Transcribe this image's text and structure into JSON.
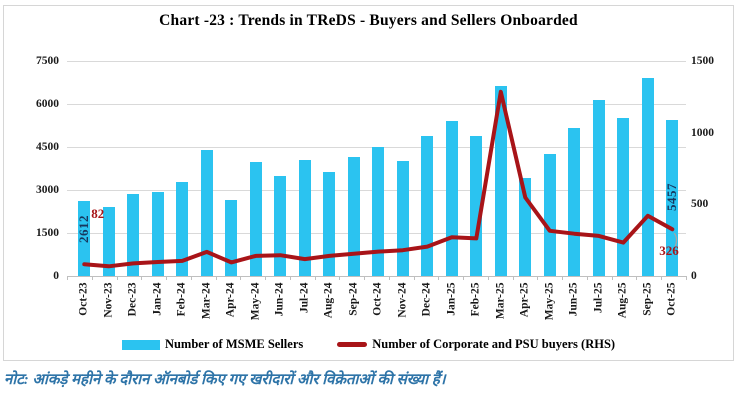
{
  "title": "Chart -23 : Trends in TReDS - Buyers and Sellers Onboarded",
  "note": "नोट: आंकड़े महीने के दौरान ऑनबोर्ड किए गए खरीदारों और विक्रेताओं की संख्या हैं।",
  "colors": {
    "bar": "#2bc3f0",
    "line": "#a81418",
    "bar_label": "#17375e",
    "line_label": "#a81418",
    "grid": "#d9d9d9",
    "note": "#2e74a8"
  },
  "legend": [
    {
      "label": "Number of MSME Sellers",
      "type": "bar",
      "color": "#2bc3f0"
    },
    {
      "label": "Number of Corporate and PSU buyers (RHS)",
      "type": "line",
      "color": "#a81418"
    }
  ],
  "chart_data": {
    "type": "bar",
    "subtype": "bar+line combo, line on secondary (right) axis",
    "title": "Chart -23 : Trends in TReDS - Buyers and Sellers Onboarded",
    "categories": [
      "Oct-23",
      "Nov-23",
      "Dec-23",
      "Jan-24",
      "Feb-24",
      "Mar-24",
      "Apr-24",
      "May-24",
      "Jun-24",
      "Jul-24",
      "Aug-24",
      "Sep-24",
      "Oct-24",
      "Nov-24",
      "Dec-24",
      "Jan-25",
      "Feb-25",
      "Mar-25",
      "Apr-25",
      "May-25",
      "Jun-25",
      "Jul-25",
      "Aug-25",
      "Sep-25",
      "Oct-25"
    ],
    "series": [
      {
        "name": "Number of MSME Sellers",
        "type": "bar",
        "axis": "left",
        "values": [
          2612,
          2400,
          2870,
          2930,
          3280,
          4410,
          2660,
          3990,
          3475,
          4050,
          3615,
          4140,
          4490,
          4000,
          4870,
          5420,
          4900,
          6640,
          3430,
          4260,
          5170,
          6150,
          5520,
          6900,
          5457
        ]
      },
      {
        "name": "Number of Corporate and PSU buyers (RHS)",
        "type": "line",
        "axis": "right",
        "values": [
          82,
          68,
          88,
          98,
          105,
          168,
          95,
          140,
          145,
          118,
          140,
          155,
          170,
          180,
          205,
          270,
          262,
          1285,
          548,
          315,
          295,
          280,
          233,
          420,
          326
        ]
      }
    ],
    "left_axis": {
      "min": 0,
      "max": 7500,
      "step": 1500,
      "ticks": [
        0,
        1500,
        3000,
        4500,
        6000,
        7500
      ]
    },
    "right_axis": {
      "min": 0,
      "max": 1500,
      "step": 500,
      "ticks": [
        0,
        500,
        1000,
        1500
      ]
    },
    "data_labels": [
      {
        "series": "bar",
        "index": 0,
        "text": "2612"
      },
      {
        "series": "line",
        "index": 0,
        "text": "82"
      },
      {
        "series": "bar",
        "index": 24,
        "text": "5457"
      },
      {
        "series": "line",
        "index": 24,
        "text": "326"
      }
    ],
    "grid": true,
    "legend_position": "bottom"
  }
}
